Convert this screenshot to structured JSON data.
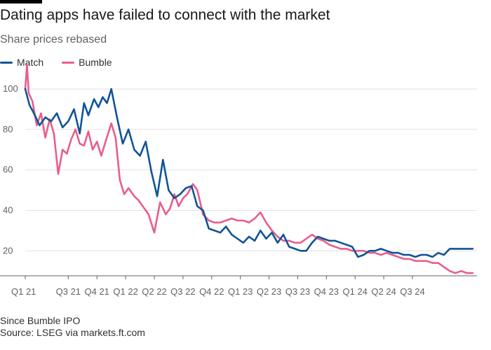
{
  "header": {
    "title": "Dating apps have failed to connect with the market",
    "subtitle": "Share prices rebased"
  },
  "footer": {
    "note": "Since Bumble IPO",
    "source": "Source: LSEG via markets.ft.com"
  },
  "chart_data": {
    "type": "line",
    "title": "Dating apps have failed to connect with the market",
    "subtitle": "Share prices rebased",
    "xlabel": "",
    "ylabel": "",
    "xlim": [
      0,
      15.75
    ],
    "ylim": [
      8,
      108
    ],
    "yticks": [
      20,
      40,
      60,
      80,
      100
    ],
    "xticks": [
      "Q1 21",
      "Q3 21",
      "Q4 21",
      "Q1 22",
      "Q2 22",
      "Q3 22",
      "Q4 22",
      "Q1 23",
      "Q2 23",
      "Q3 23",
      "Q4 23",
      "Q1 24",
      "Q2 24",
      "Q3 24"
    ],
    "xtick_positions": [
      0,
      1.5,
      2.5,
      3.5,
      4.5,
      5.5,
      6.5,
      7.5,
      8.5,
      9.5,
      10.5,
      11.5,
      12.5,
      13.5
    ],
    "legend_position": "top-left",
    "grid": true,
    "series": [
      {
        "name": "Match",
        "color": "#0f5499",
        "x": [
          0,
          0.15,
          0.3,
          0.5,
          0.7,
          0.9,
          1.1,
          1.3,
          1.5,
          1.7,
          1.9,
          2.05,
          2.2,
          2.4,
          2.55,
          2.7,
          2.85,
          3.0,
          3.2,
          3.4,
          3.6,
          3.8,
          4.0,
          4.2,
          4.4,
          4.6,
          4.8,
          5.0,
          5.2,
          5.4,
          5.6,
          5.8,
          6.0,
          6.2,
          6.4,
          6.6,
          6.8,
          7.0,
          7.2,
          7.4,
          7.6,
          7.8,
          8.0,
          8.2,
          8.4,
          8.6,
          8.8,
          9.0,
          9.2,
          9.4,
          9.6,
          9.8,
          10.0,
          10.2,
          10.4,
          10.6,
          10.8,
          11.0,
          11.2,
          11.4,
          11.6,
          11.8,
          12.0,
          12.2,
          12.4,
          12.6,
          12.8,
          13.0,
          13.2,
          13.4,
          13.6,
          13.8,
          14.0,
          14.2,
          14.4,
          14.6,
          14.8,
          15.0,
          15.2,
          15.4,
          15.6
        ],
        "values": [
          100,
          92,
          88,
          82,
          86,
          84,
          88,
          81,
          84,
          90,
          78,
          93,
          87,
          95,
          91,
          96,
          93,
          100,
          86,
          73,
          80,
          70,
          67,
          74,
          59,
          47,
          65,
          50,
          46,
          48,
          51,
          52,
          42,
          40,
          31,
          30,
          29,
          32,
          28,
          26,
          24,
          27,
          25,
          30,
          26,
          29,
          24,
          28,
          22,
          21,
          20,
          20,
          24,
          27,
          26,
          25,
          25,
          24,
          23,
          22,
          17,
          18,
          20,
          20,
          21,
          20,
          19,
          19,
          18,
          18,
          17,
          18,
          18,
          17,
          19,
          18,
          21,
          21,
          21,
          21,
          21
        ]
      },
      {
        "name": "Bumble",
        "color": "#e95d8c",
        "x": [
          0,
          0.06,
          0.12,
          0.25,
          0.4,
          0.55,
          0.7,
          0.85,
          1.0,
          1.15,
          1.3,
          1.45,
          1.6,
          1.75,
          1.9,
          2.05,
          2.2,
          2.35,
          2.5,
          2.65,
          2.8,
          3.0,
          3.15,
          3.3,
          3.45,
          3.6,
          3.8,
          3.95,
          4.1,
          4.3,
          4.5,
          4.7,
          4.9,
          5.05,
          5.2,
          5.35,
          5.5,
          5.65,
          5.85,
          6.0,
          6.2,
          6.4,
          6.6,
          6.8,
          7.0,
          7.2,
          7.4,
          7.6,
          7.8,
          8.0,
          8.2,
          8.4,
          8.6,
          8.8,
          9.0,
          9.2,
          9.4,
          9.6,
          9.8,
          10.0,
          10.2,
          10.4,
          10.6,
          10.8,
          11.0,
          11.2,
          11.4,
          11.6,
          11.8,
          12.0,
          12.2,
          12.4,
          12.6,
          12.8,
          13.0,
          13.2,
          13.4,
          13.6,
          13.8,
          14.0,
          14.2,
          14.4,
          14.6,
          14.8,
          15.0,
          15.2,
          15.4,
          15.6
        ],
        "values": [
          100,
          112,
          98,
          94,
          82,
          88,
          76,
          85,
          78,
          58,
          70,
          68,
          75,
          80,
          73,
          72,
          79,
          70,
          74,
          67,
          74,
          83,
          76,
          55,
          48,
          51,
          47,
          45,
          42,
          38,
          29,
          44,
          38,
          41,
          48,
          42,
          46,
          48,
          53,
          50,
          38,
          35,
          34,
          34,
          35,
          36,
          35,
          35,
          34,
          36,
          39,
          34,
          30,
          27,
          25,
          25,
          24,
          24,
          26,
          28,
          26,
          25,
          23,
          22,
          21,
          21,
          20,
          20,
          20,
          19,
          19,
          18,
          19,
          18,
          17,
          16,
          16,
          15,
          15,
          15,
          14,
          14,
          12,
          10,
          9,
          10,
          9,
          9
        ]
      }
    ]
  }
}
